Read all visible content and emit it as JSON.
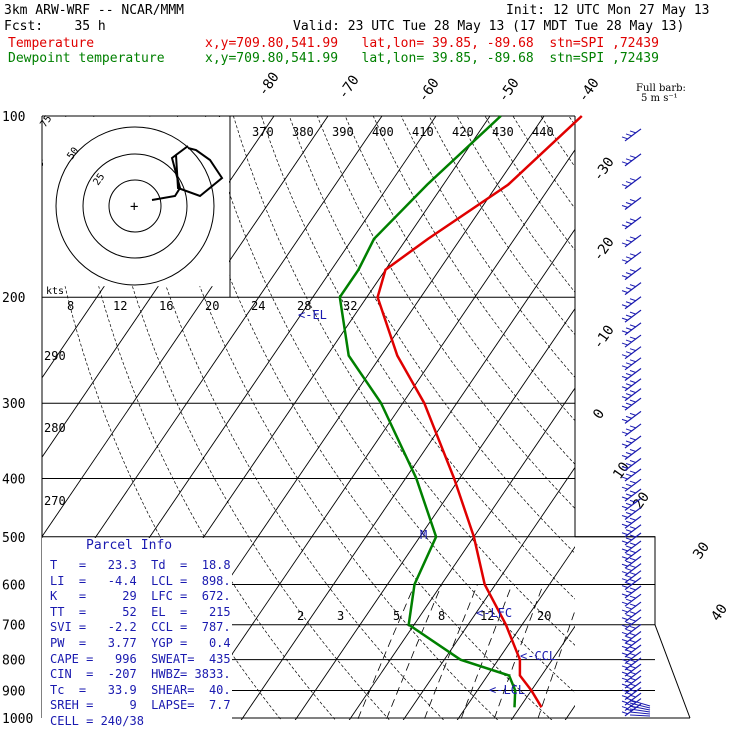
{
  "header": {
    "model": "3km ARW-WRF -- NCAR/MMM",
    "init": "Init: 12 UTC Mon 27 May 13",
    "fcst": "Fcst:    35 h",
    "valid": "Valid: 23 UTC Tue 28 May 13 (17 MDT Tue 28 May 13)",
    "temp_label": "Temperature",
    "temp_loc": "x,y=709.80,541.99   lat,lon= 39.85, -89.68  stn=SPI ,72439",
    "dew_label": "Dewpoint temperature",
    "dew_loc": "x,y=709.80,541.99   lat,lon= 39.85, -89.68  stn=SPI ,72439"
  },
  "barb_legend": {
    "line1": "Full barb:",
    "line2": "5 m s⁻¹"
  },
  "hodograph": {
    "rings": [
      "25",
      "50",
      "75"
    ],
    "units": "kts"
  },
  "parcel_info": {
    "title": "Parcel Info",
    "rows": [
      "T   =   23.3  Td  =  18.8",
      "LI  =   -4.4  LCL =  898.",
      "K   =     29  LFC =  672.",
      "TT  =     52  EL  =   215",
      "SVI =   -2.2  CCL =  787.",
      "PW  =   3.77  YGP =   0.4",
      "CAPE =   996  SWEAT=  435",
      "CIN  =  -207  HWBZ= 3833.",
      "Tc  =   33.9  SHEAR=  40.",
      "SREH =     9  LAPSE=  7.7",
      "CELL = 240/38"
    ]
  },
  "level_labels": {
    "el": "EL",
    "lfc": "LFC",
    "ccl": "CCL",
    "lcl": "LCL",
    "m": "M"
  },
  "chart_data": {
    "type": "line",
    "title": "",
    "y_axis": {
      "label": "",
      "scale": "log",
      "ticks": [
        100,
        200,
        300,
        400,
        500,
        600,
        700,
        800,
        900,
        1000
      ]
    },
    "x_axis": {
      "label": "",
      "skewed_isotherms": [
        -80,
        -70,
        -60,
        -50,
        -40,
        -30,
        -20,
        -10,
        0,
        10,
        20,
        30,
        40
      ]
    },
    "theta_labels": [
      "370",
      "380",
      "390",
      "400",
      "410",
      "420",
      "430",
      "440"
    ],
    "hodo_speed_ticks": [
      "8",
      "12",
      "16",
      "20",
      "24",
      "28",
      "32"
    ],
    "theta_left_labels": [
      "290",
      "280",
      "270"
    ],
    "mixing_ratio_labels": [
      "2",
      "3",
      "5",
      "8",
      "12",
      "20"
    ],
    "series": [
      {
        "name": "Temperature",
        "color": "#e00000",
        "points": [
          [
            100,
            -43
          ],
          [
            130,
            -48
          ],
          [
            160,
            -56
          ],
          [
            180,
            -60
          ],
          [
            200,
            -58
          ],
          [
            250,
            -47
          ],
          [
            300,
            -36
          ],
          [
            400,
            -21
          ],
          [
            500,
            -10
          ],
          [
            600,
            -2
          ],
          [
            700,
            7
          ],
          [
            800,
            14
          ],
          [
            850,
            16
          ],
          [
            900,
            20
          ],
          [
            960,
            24
          ]
        ]
      },
      {
        "name": "Dewpoint temperature",
        "color": "#008000",
        "points": [
          [
            100,
            -58
          ],
          [
            130,
            -63
          ],
          [
            160,
            -66
          ],
          [
            180,
            -65
          ],
          [
            200,
            -65
          ],
          [
            250,
            -56
          ],
          [
            300,
            -44
          ],
          [
            400,
            -28
          ],
          [
            500,
            -17
          ],
          [
            600,
            -15
          ],
          [
            700,
            -11
          ],
          [
            800,
            3
          ],
          [
            850,
            14
          ],
          [
            900,
            17
          ],
          [
            960,
            19
          ]
        ]
      }
    ]
  }
}
